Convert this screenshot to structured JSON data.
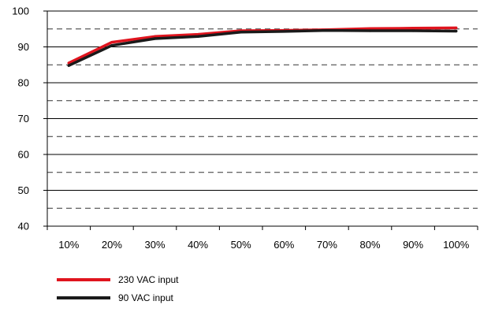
{
  "chart_data": {
    "type": "line",
    "title": "",
    "xlabel": "",
    "ylabel": "",
    "categories": [
      "10%",
      "20%",
      "30%",
      "40%",
      "50%",
      "60%",
      "70%",
      "80%",
      "90%",
      "100%"
    ],
    "ylim": [
      40,
      100
    ],
    "yticks": [
      "40",
      "50",
      "60",
      "70",
      "80",
      "90",
      "100"
    ],
    "grid": "solid major lines at every 10, dashed minor lines at every 5",
    "legend_position": "bottom-left",
    "series": [
      {
        "name": "230 VAC input",
        "color": "#e0141e",
        "values": [
          85.5,
          91.3,
          92.9,
          93.5,
          94.5,
          94.6,
          94.8,
          95.1,
          95.2,
          95.3
        ]
      },
      {
        "name": "90 VAC input",
        "color": "#1a1a1a",
        "values": [
          84.8,
          90.4,
          92.3,
          92.9,
          94.1,
          94.3,
          94.6,
          94.5,
          94.5,
          94.4
        ]
      }
    ]
  }
}
